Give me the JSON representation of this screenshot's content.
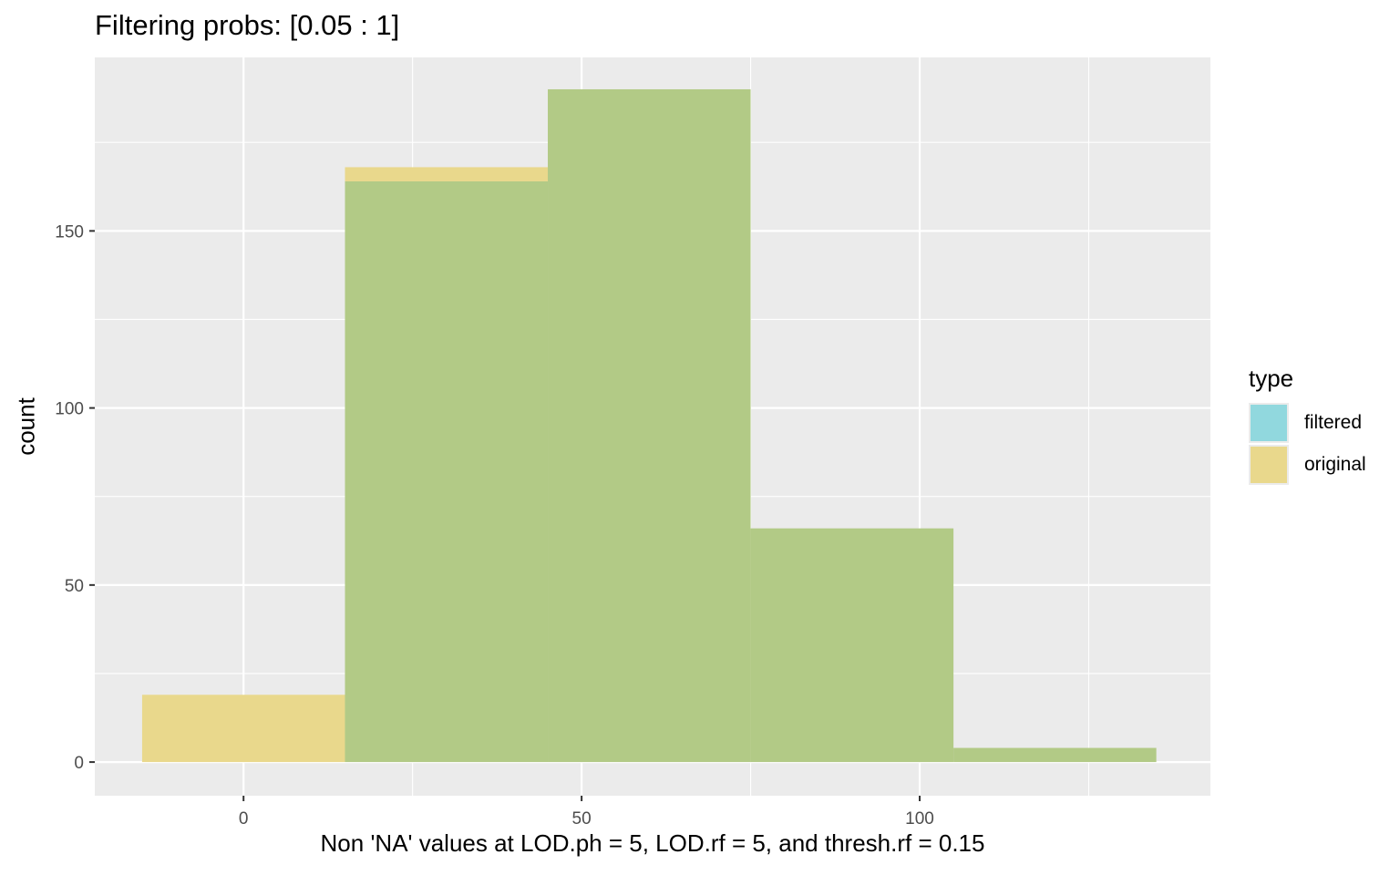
{
  "chart_data": {
    "type": "bar",
    "title": "Filtering probs: [0.05 : 1]",
    "xlabel": "Non 'NA' values at LOD.ph = 5, LOD.rf = 5, and thresh.rf = 0.15",
    "ylabel": "count",
    "xlim": [
      -22,
      143
    ],
    "ylim": [
      -9.5,
      199
    ],
    "x_ticks": [
      0,
      50,
      100
    ],
    "y_ticks": [
      0,
      50,
      100,
      150
    ],
    "x_tick_labels": [
      "0",
      "50",
      "100"
    ],
    "y_tick_labels": [
      "0",
      "50",
      "100",
      "150"
    ],
    "bins": [
      [
        -15,
        15
      ],
      [
        15,
        45
      ],
      [
        45,
        75
      ],
      [
        75,
        105
      ],
      [
        105,
        135
      ]
    ],
    "series": [
      {
        "name": "filtered",
        "color": "#00BFC4",
        "values": [
          0,
          164,
          190,
          66,
          4
        ]
      },
      {
        "name": "original",
        "color": "#F8C02C",
        "values": [
          19,
          168,
          190,
          66,
          4
        ]
      }
    ],
    "overlap_color": "#B2CA86",
    "grid": true,
    "legend_title": "type",
    "legend_position": "right"
  }
}
